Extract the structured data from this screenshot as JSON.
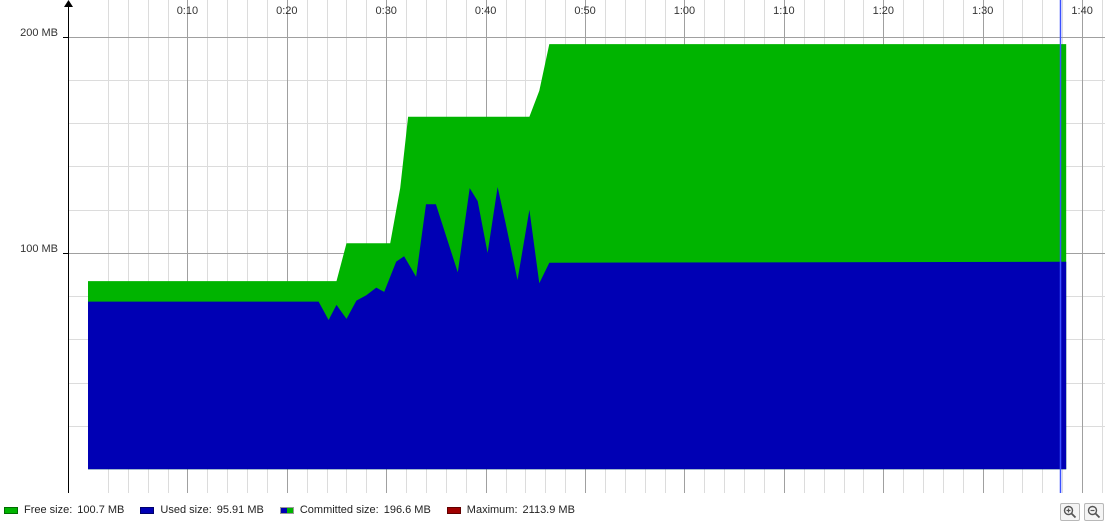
{
  "chart_data": {
    "type": "area",
    "x_unit": "m:ss",
    "x_ticks": [
      "0:10",
      "0:20",
      "0:30",
      "0:40",
      "0:50",
      "1:00",
      "1:10",
      "1:20",
      "1:30",
      "1:40"
    ],
    "x_tick_values": [
      10,
      20,
      30,
      40,
      50,
      60,
      70,
      80,
      90,
      100
    ],
    "xlim": [
      -0.2,
      102.3
    ],
    "y_ticks": [
      "100 MB",
      "200 MB"
    ],
    "y_tick_values": [
      100,
      200
    ],
    "ylim": [
      -11,
      217
    ],
    "grid": true,
    "legend_position": "bottom",
    "marker_time": 97.8,
    "series": [
      {
        "name": "Used size",
        "color": "#0000b4",
        "x": [
          0,
          23.2,
          24.2,
          25.0,
          26.0,
          27.0,
          28.0,
          29.0,
          29.8,
          31.0,
          31.8,
          33.0,
          34.0,
          35.0,
          37.2,
          38.4,
          39.2,
          40.2,
          41.2,
          42.0,
          43.2,
          44.4,
          45.4,
          46.4,
          97.8,
          98.4
        ],
        "values": [
          77.5,
          77.5,
          69.0,
          76.0,
          69.5,
          78.0,
          80.5,
          84.0,
          82.0,
          96.0,
          98.5,
          89.0,
          122.5,
          122.5,
          91.0,
          130.0,
          124.0,
          100.0,
          130.5,
          114.0,
          87.5,
          120.0,
          86.0,
          95.5,
          95.91,
          95.91
        ]
      },
      {
        "name": "Committed size",
        "color": "#00b400",
        "x": [
          0,
          25.0,
          26.0,
          30.4,
          31.4,
          32.2,
          44.4,
          45.4,
          46.4,
          97.8,
          98.4
        ],
        "values": [
          87.0,
          87.0,
          104.5,
          104.5,
          130.0,
          163.0,
          163.0,
          175.0,
          196.6,
          196.6,
          196.6
        ]
      }
    ],
    "legend": [
      {
        "label": "Free size:",
        "value": "100.7 MB",
        "colors": [
          "#00b400"
        ]
      },
      {
        "label": "Used size:",
        "value": "95.91 MB",
        "colors": [
          "#0000b4"
        ]
      },
      {
        "label": "Committed size:",
        "value": "196.6 MB",
        "colors": [
          "#0000b4",
          "#00b400"
        ]
      },
      {
        "label": "Maximum:",
        "value": "2113.9 MB",
        "colors": [
          "#a00000"
        ]
      }
    ]
  },
  "toolbar": {
    "zoom_in_icon": "zoom-in-icon",
    "zoom_out_icon": "zoom-out-icon"
  },
  "colors": {
    "free": "#00b400",
    "used": "#0000b4",
    "maximum": "#a00000",
    "grid_major": "#a0a0a0",
    "grid_minor": "#dcdcdc",
    "marker": "#3a50ff"
  }
}
